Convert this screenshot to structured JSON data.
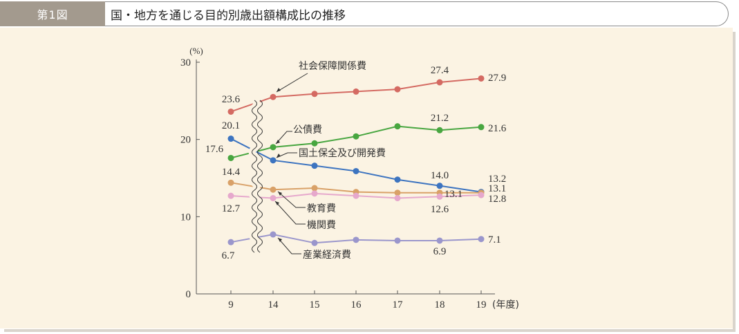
{
  "header": {
    "figure_tag": "第1図",
    "title": "国・地方を通じる目的別歳出額構成比の推移"
  },
  "colors": {
    "panel_bg": "#fbf3e3",
    "tag_bg": "#a39a8e",
    "social_security": "#d46a62",
    "public_debt": "#48a640",
    "land_conservation": "#3d74c0",
    "education": "#d9a168",
    "institution": "#e6a8cc",
    "industry": "#9a96cc"
  },
  "chart_data": {
    "type": "line",
    "title": "",
    "xlabel": "(年度)",
    "ylabel": "(%)",
    "categories": [
      "9",
      "14",
      "15",
      "16",
      "17",
      "18",
      "19"
    ],
    "ylim": [
      0,
      30
    ],
    "yticks": [
      "0",
      "10",
      "20",
      "30"
    ],
    "axis_break": "between 9 and 14",
    "grid": false,
    "series": [
      {
        "key": "social_security",
        "name": "社会保障関係費",
        "values": [
          23.6,
          25.5,
          25.9,
          26.2,
          26.5,
          27.4,
          27.9
        ],
        "labels": [
          "23.6",
          "",
          "",
          "",
          "",
          "27.4",
          "27.9"
        ]
      },
      {
        "key": "public_debt",
        "name": "公債費",
        "values": [
          17.6,
          19.0,
          19.5,
          20.4,
          21.7,
          21.2,
          21.6
        ],
        "labels": [
          "17.6",
          "",
          "",
          "",
          "",
          "21.2",
          "21.6"
        ]
      },
      {
        "key": "land_conservation",
        "name": "国土保全及び開発費",
        "values": [
          20.1,
          17.3,
          16.6,
          15.9,
          14.8,
          14.0,
          13.2
        ],
        "labels": [
          "20.1",
          "",
          "",
          "",
          "",
          "14.0",
          "13.2"
        ]
      },
      {
        "key": "education",
        "name": "教育費",
        "values": [
          14.4,
          13.5,
          13.7,
          13.2,
          13.1,
          13.1,
          13.1
        ],
        "labels": [
          "14.4",
          "",
          "",
          "",
          "",
          "13.1",
          "13.1"
        ]
      },
      {
        "key": "institution",
        "name": "機関費",
        "values": [
          12.7,
          12.4,
          13.0,
          12.7,
          12.4,
          12.6,
          12.8
        ],
        "labels": [
          "12.7",
          "",
          "",
          "",
          "",
          "12.6",
          "12.8"
        ]
      },
      {
        "key": "industry",
        "name": "産業経済費",
        "values": [
          6.7,
          7.7,
          6.6,
          7.0,
          6.9,
          6.9,
          7.1
        ],
        "labels": [
          "6.7",
          "",
          "",
          "",
          "",
          "6.9",
          "7.1"
        ]
      }
    ]
  }
}
